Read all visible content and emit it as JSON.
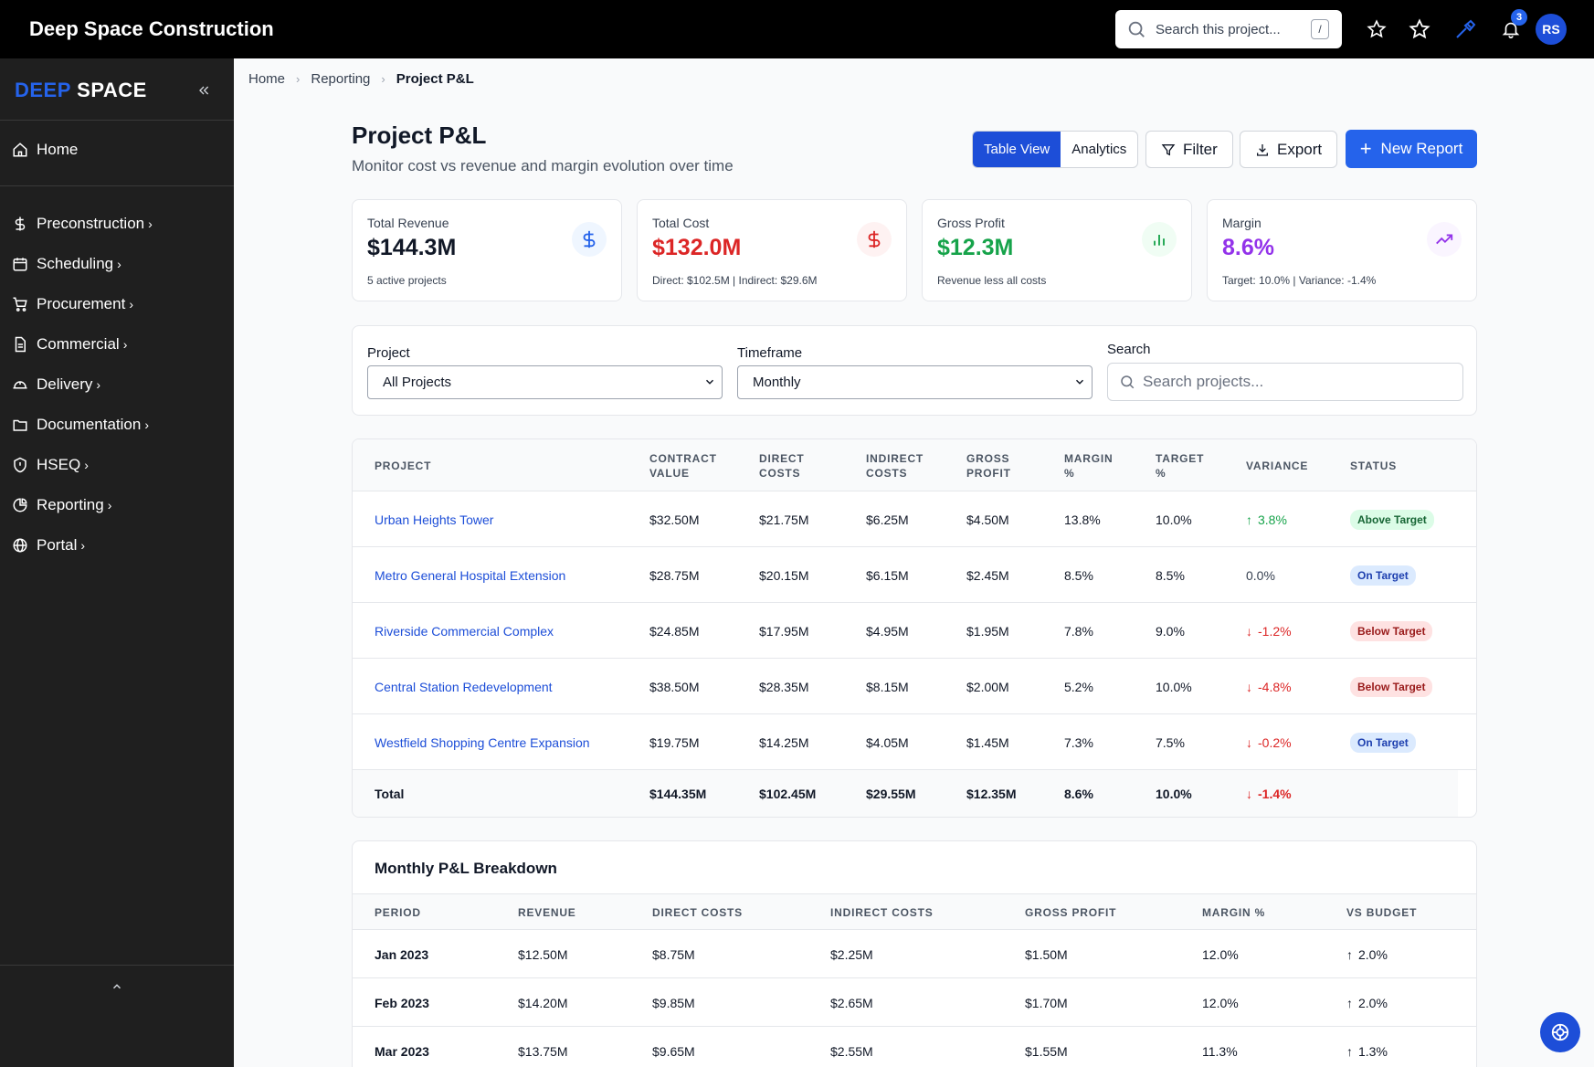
{
  "app": {
    "title": "Deep Space Construction"
  },
  "header": {
    "search_placeholder": "Search this project...",
    "search_shortcut": "/",
    "notification_count": "3",
    "avatar_initials": "RS",
    "colors": {
      "accent": "#2563eb",
      "bar": "#000000"
    },
    "icons": [
      "search-icon",
      "star-icon",
      "star-outline-icon",
      "hammer-icon",
      "bell-icon"
    ]
  },
  "sidebar": {
    "brand_part1": "DEEP",
    "brand_part2": "SPACE",
    "items": [
      {
        "label": "Home",
        "icon": "home-icon",
        "has_chevron": false
      },
      {
        "label": "Preconstruction",
        "icon": "dollar-icon",
        "has_chevron": true
      },
      {
        "label": "Scheduling",
        "icon": "calendar-icon",
        "has_chevron": true
      },
      {
        "label": "Procurement",
        "icon": "cart-icon",
        "has_chevron": true
      },
      {
        "label": "Commercial",
        "icon": "document-icon",
        "has_chevron": true
      },
      {
        "label": "Delivery",
        "icon": "hardhat-icon",
        "has_chevron": true
      },
      {
        "label": "Documentation",
        "icon": "folder-icon",
        "has_chevron": true
      },
      {
        "label": "HSEQ",
        "icon": "shield-icon",
        "has_chevron": true
      },
      {
        "label": "Reporting",
        "icon": "pie-chart-icon",
        "has_chevron": true
      },
      {
        "label": "Portal",
        "icon": "globe-icon",
        "has_chevron": true
      }
    ],
    "chevron": "›"
  },
  "breadcrumb": {
    "items": [
      "Home",
      "Reporting"
    ],
    "current": "Project P&L"
  },
  "page": {
    "title": "Project P&L",
    "subtitle": "Monitor cost vs revenue and margin evolution over time",
    "view_table": "Table View",
    "view_analytics": "Analytics",
    "filter_label": "Filter",
    "export_label": "Export",
    "new_report_label": "New Report",
    "new_report_plus": "+"
  },
  "kpis": [
    {
      "label": "Total Revenue",
      "value": "$144.3M",
      "sub": "5 active projects",
      "color": "#111827",
      "icon": "dollar-icon",
      "icon_bg": "#eff6ff",
      "icon_color": "#2563eb"
    },
    {
      "label": "Total Cost",
      "value": "$132.0M",
      "sub": "Direct: $102.5M | Indirect: $29.6M",
      "color": "#dc2626",
      "icon": "dollar-icon",
      "icon_bg": "#fef2f2",
      "icon_color": "#dc2626"
    },
    {
      "label": "Gross Profit",
      "value": "$12.3M",
      "sub": "Revenue less all costs",
      "color": "#16a34a",
      "icon": "bar-chart-icon",
      "icon_bg": "#f0fdf4",
      "icon_color": "#16a34a"
    },
    {
      "label": "Margin",
      "value": "8.6%",
      "sub": "Target: 10.0% | Variance: -1.4%",
      "color": "#9333ea",
      "icon": "trend-up-icon",
      "icon_bg": "#faf5ff",
      "icon_color": "#9333ea"
    }
  ],
  "filters": {
    "project_label": "Project",
    "project_value": "All Projects",
    "timeframe_label": "Timeframe",
    "timeframe_value": "Monthly",
    "search_label": "Search",
    "search_placeholder": "Search projects..."
  },
  "pl_table": {
    "headers": [
      "PROJECT",
      "CONTRACT VALUE",
      "DIRECT COSTS",
      "INDIRECT COSTS",
      "GROSS PROFIT",
      "MARGIN %",
      "TARGET %",
      "VARIANCE",
      "STATUS"
    ],
    "rows": [
      {
        "project": "Urban Heights Tower",
        "contract": "$32.50M",
        "direct": "$21.75M",
        "indirect": "$6.25M",
        "gross": "$4.50M",
        "margin": "13.8%",
        "target": "10.0%",
        "variance": "3.8%",
        "trend": "up",
        "status": "Above Target",
        "status_bg": "#dcfce7",
        "status_color": "#166534"
      },
      {
        "project": "Metro General Hospital Extension",
        "contract": "$28.75M",
        "direct": "$20.15M",
        "indirect": "$6.15M",
        "gross": "$2.45M",
        "margin": "8.5%",
        "target": "8.5%",
        "variance": "0.0%",
        "trend": "none",
        "status": "On Target",
        "status_bg": "#dbeafe",
        "status_color": "#1e40af"
      },
      {
        "project": "Riverside Commercial Complex",
        "contract": "$24.85M",
        "direct": "$17.95M",
        "indirect": "$4.95M",
        "gross": "$1.95M",
        "margin": "7.8%",
        "target": "9.0%",
        "variance": "-1.2%",
        "trend": "down",
        "status": "Below Target",
        "status_bg": "#fee2e2",
        "status_color": "#991b1b"
      },
      {
        "project": "Central Station Redevelopment",
        "contract": "$38.50M",
        "direct": "$28.35M",
        "indirect": "$8.15M",
        "gross": "$2.00M",
        "margin": "5.2%",
        "target": "10.0%",
        "variance": "-4.8%",
        "trend": "down",
        "status": "Below Target",
        "status_bg": "#fee2e2",
        "status_color": "#991b1b"
      },
      {
        "project": "Westfield Shopping Centre Expansion",
        "contract": "$19.75M",
        "direct": "$14.25M",
        "indirect": "$4.05M",
        "gross": "$1.45M",
        "margin": "7.3%",
        "target": "7.5%",
        "variance": "-0.2%",
        "trend": "down",
        "status": "On Target",
        "status_bg": "#dbeafe",
        "status_color": "#1e40af"
      }
    ],
    "total": {
      "label": "Total",
      "contract": "$144.35M",
      "direct": "$102.45M",
      "indirect": "$29.55M",
      "gross": "$12.35M",
      "margin": "8.6%",
      "target": "10.0%",
      "variance": "-1.4%",
      "trend": "down"
    }
  },
  "monthly": {
    "title": "Monthly P&L Breakdown",
    "headers": [
      "PERIOD",
      "REVENUE",
      "DIRECT COSTS",
      "INDIRECT COSTS",
      "GROSS PROFIT",
      "MARGIN %",
      "VS BUDGET"
    ],
    "rows": [
      {
        "period": "Jan 2023",
        "revenue": "$12.50M",
        "direct": "$8.75M",
        "indirect": "$2.25M",
        "gross": "$1.50M",
        "margin": "12.0%",
        "vs_budget": "2.0%",
        "trend": "up"
      },
      {
        "period": "Feb 2023",
        "revenue": "$14.20M",
        "direct": "$9.85M",
        "indirect": "$2.65M",
        "gross": "$1.70M",
        "margin": "12.0%",
        "vs_budget": "2.0%",
        "trend": "up"
      },
      {
        "period": "Mar 2023",
        "revenue": "$13.75M",
        "direct": "$9.65M",
        "indirect": "$2.55M",
        "gross": "$1.55M",
        "margin": "11.3%",
        "vs_budget": "1.3%",
        "trend": "up"
      }
    ]
  }
}
